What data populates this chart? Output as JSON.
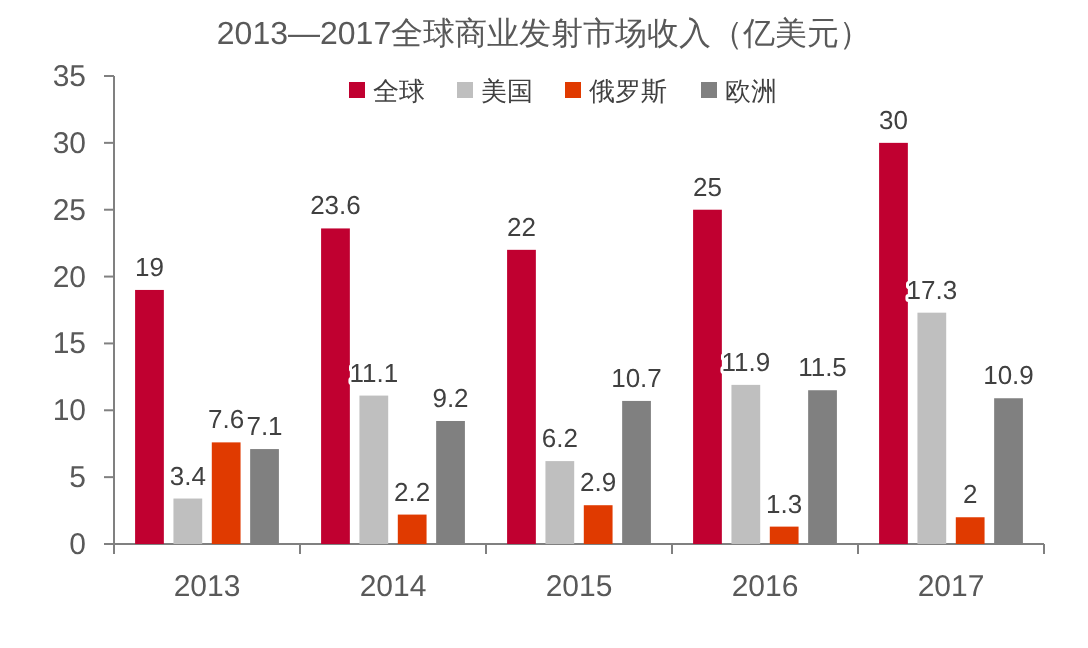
{
  "chart_data": {
    "type": "bar",
    "title": "2013—2017全球商业发射市场收入（亿美元）",
    "categories": [
      "2013",
      "2014",
      "2015",
      "2016",
      "2017"
    ],
    "series": [
      {
        "name": "全球",
        "color": "#c00030",
        "values": [
          19,
          23.6,
          22,
          25,
          30
        ]
      },
      {
        "name": "美国",
        "color": "#bfbfbf",
        "values": [
          3.4,
          11.1,
          6.2,
          11.9,
          17.3
        ]
      },
      {
        "name": "俄罗斯",
        "color": "#e03a00",
        "values": [
          7.6,
          2.2,
          2.9,
          1.3,
          2
        ]
      },
      {
        "name": "欧洲",
        "color": "#808080",
        "values": [
          7.1,
          9.2,
          10.7,
          11.5,
          10.9
        ]
      }
    ],
    "ylim": [
      0,
      35
    ],
    "yticks": [
      0,
      5,
      10,
      15,
      20,
      25,
      30,
      35
    ],
    "data_labels": true,
    "legend": "top",
    "grid": false
  }
}
